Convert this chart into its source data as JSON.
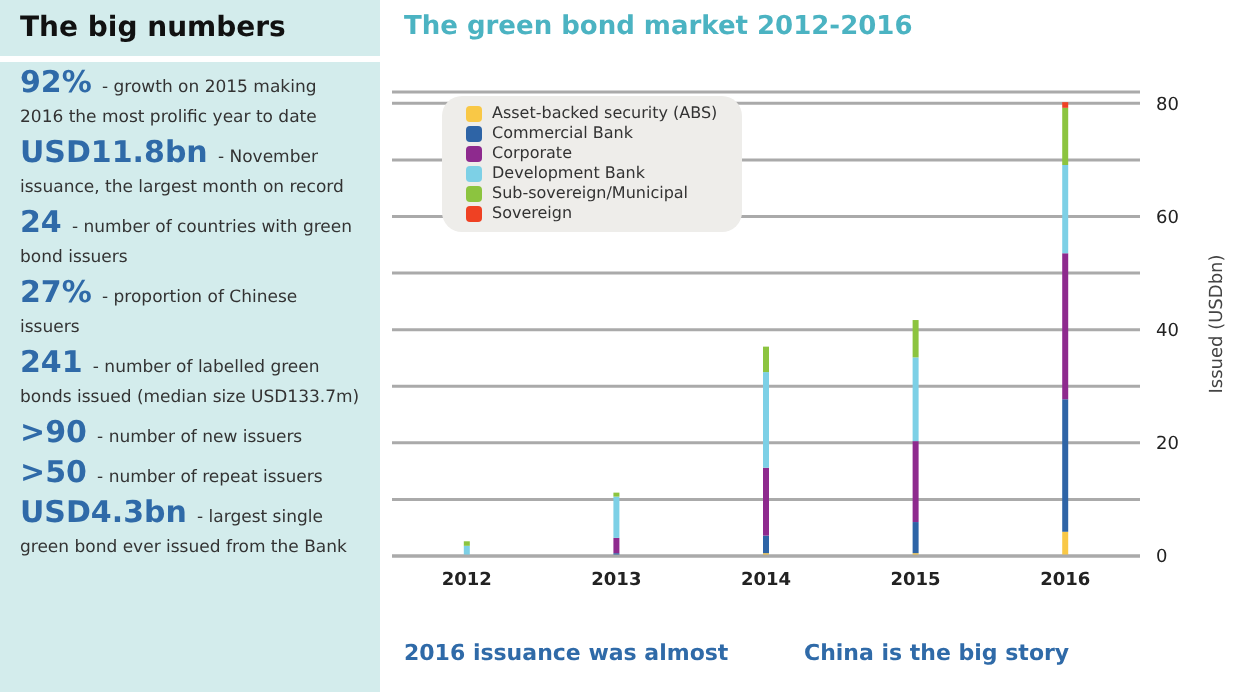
{
  "chart_data": [
    {
      "type": "other",
      "title": "The big numbers",
      "categories": [
        "92%",
        "USD11.8bn",
        "24",
        "27%",
        "241",
        ">90",
        ">50",
        "USD4.3bn"
      ],
      "annotations": [
        "- growth on 2015 making 2016 the most prolific year to date",
        "- November issuance, the largest month on record",
        "- number of countries with green bond issuers",
        "- proportion of Chinese issuers",
        "- number of labelled green bonds issued (median size USD133.7m)",
        "- number of new issuers",
        "- number of repeat issuers",
        "- largest single green bond ever issued from the Bank"
      ]
    },
    {
      "type": "bar",
      "title": "The green bond market 2012-2016",
      "ylabel": "Issued (USDbn)",
      "categories": [
        "2012",
        "2013",
        "2014",
        "2015",
        "2016"
      ],
      "stacked": true,
      "series": [
        {
          "name": "Asset-backed security (ABS)",
          "color": "#f9c846",
          "values": [
            null,
            null,
            0.5,
            0.5,
            4.3
          ]
        },
        {
          "name": "Commercial Bank",
          "color": "#2e64a6",
          "values": [
            null,
            0.5,
            3.1,
            5.5,
            23.4
          ]
        },
        {
          "name": "Corporate",
          "color": "#8e2a8e",
          "values": [
            null,
            2.7,
            12.0,
            14.3,
            25.8
          ]
        },
        {
          "name": "Development Bank",
          "color": "#7dd0e6",
          "values": [
            1.8,
            7.3,
            16.9,
            14.8,
            15.6
          ]
        },
        {
          "name": "Sub-sovereign/Municipal",
          "color": "#8cc43f",
          "values": [
            0.8,
            0.7,
            4.5,
            6.6,
            10.1
          ]
        },
        {
          "name": "Sovereign",
          "color": "#ef4123",
          "values": [
            null,
            null,
            null,
            null,
            1.0
          ]
        }
      ],
      "ylim": [
        0,
        82
      ],
      "yticks": [
        0,
        {
          "value": 10,
          "label": null
        },
        20,
        {
          "value": 30,
          "label": null
        },
        40,
        {
          "value": 50,
          "label": null
        },
        60,
        {
          "value": 70,
          "label": null
        },
        80
      ],
      "grid": "y",
      "legend": "top left",
      "annotations": [
        "2016 issuance was almost",
        "China is the big story"
      ]
    }
  ]
}
